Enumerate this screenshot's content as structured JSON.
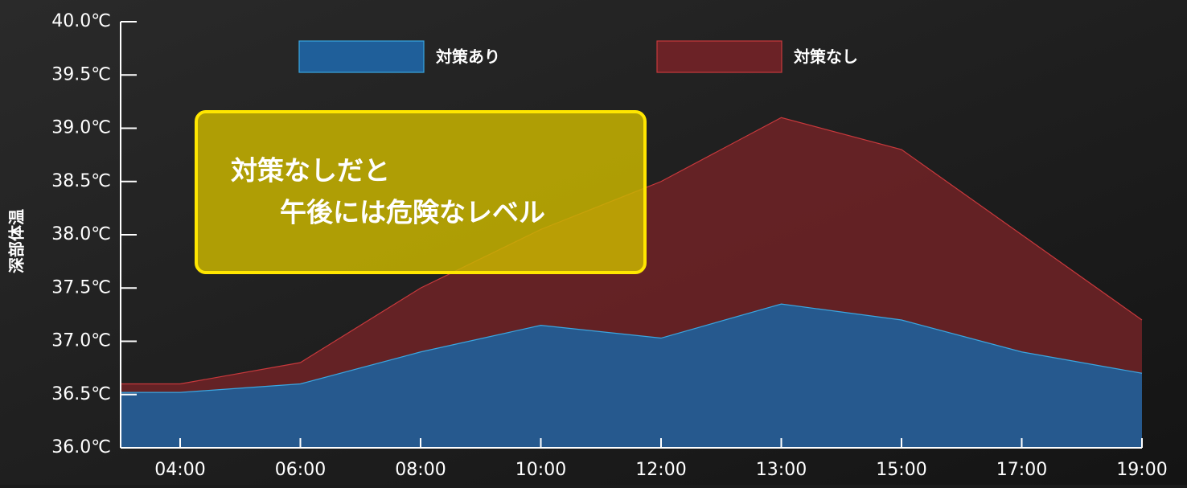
{
  "chart_data": {
    "type": "area",
    "ylabel": "深部体温",
    "categories": [
      "04:00",
      "06:00",
      "08:00",
      "10:00",
      "12:00",
      "13:00",
      "15:00",
      "17:00",
      "19:00"
    ],
    "series": [
      {
        "name": "対策なし",
        "color": "#6b2226",
        "edge": "#c8393c",
        "values": [
          36.6,
          36.8,
          37.5,
          38.05,
          38.5,
          39.1,
          38.8,
          38.0,
          37.2
        ]
      },
      {
        "name": "対策あり",
        "color": "#1f5f9a",
        "edge": "#3aa6e0",
        "values": [
          36.52,
          36.6,
          36.9,
          37.15,
          37.03,
          37.35,
          37.2,
          36.9,
          36.7
        ]
      }
    ],
    "legend_order": [
      1,
      0
    ],
    "ylim": [
      36.0,
      40.0
    ],
    "yticks": [
      {
        "value": 36.0,
        "label": "36.0℃"
      },
      {
        "value": 36.5,
        "label": "36.5℃"
      },
      {
        "value": 37.0,
        "label": "37.0℃"
      },
      {
        "value": 37.5,
        "label": "37.5℃"
      },
      {
        "value": 38.0,
        "label": "38.0℃"
      },
      {
        "value": 38.5,
        "label": "38.5℃"
      },
      {
        "value": 39.0,
        "label": "39.0℃"
      },
      {
        "value": 39.5,
        "label": "39.5℃"
      },
      {
        "value": 40.0,
        "label": "40.0℃"
      }
    ],
    "annotation": [
      "対策なしだと",
      "午後には危険なレベル"
    ]
  }
}
